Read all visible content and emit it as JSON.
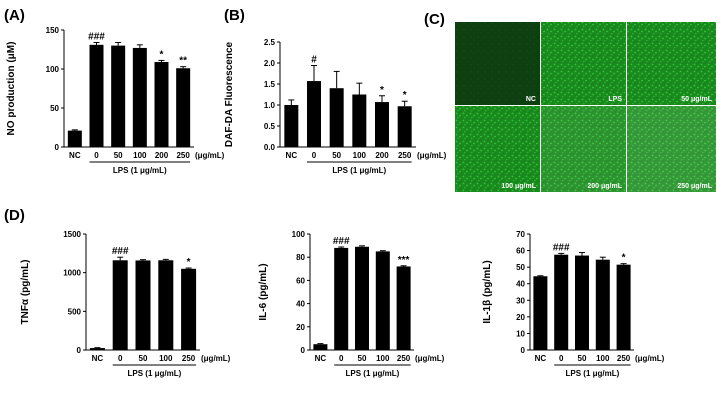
{
  "panels": [
    {
      "id": "A",
      "letter": "(A)"
    },
    {
      "id": "B",
      "letter": "(B)"
    },
    {
      "id": "C",
      "letter": "(C)"
    },
    {
      "id": "D",
      "letter": "(D)"
    }
  ],
  "chart_data": [
    {
      "panel": "A",
      "type": "bar",
      "categories": [
        "NC",
        "0",
        "50",
        "100",
        "200",
        "250"
      ],
      "values": [
        21,
        131,
        130,
        127,
        109,
        101
      ],
      "errors": [
        1,
        3,
        4,
        4,
        2,
        2
      ],
      "significance": [
        "",
        "###",
        "",
        "",
        "*",
        "**"
      ],
      "ylabel": "NO production (μM)",
      "yticks": [
        0,
        50,
        100,
        150
      ],
      "ylim": [
        0,
        150
      ],
      "unit": "(μg/mL)",
      "group_label": "LPS (1 μg/mL)",
      "color": "#000000"
    },
    {
      "panel": "B",
      "type": "bar",
      "categories": [
        "NC",
        "0",
        "50",
        "100",
        "200",
        "250"
      ],
      "values": [
        1.0,
        1.57,
        1.4,
        1.25,
        1.07,
        0.97
      ],
      "errors": [
        0.12,
        0.37,
        0.4,
        0.27,
        0.15,
        0.12
      ],
      "significance": [
        "",
        "#",
        "",
        "",
        "*",
        "*"
      ],
      "ylabel": "DAF-DA Fluorescence",
      "yticks": [
        0.0,
        0.5,
        1.0,
        1.5,
        2.0,
        2.5
      ],
      "ylim": [
        0,
        2.5
      ],
      "unit": "(μg/mL)",
      "group_label": "LPS (1 μg/mL)",
      "color": "#000000"
    },
    {
      "panel": "D1",
      "type": "bar",
      "categories": [
        "NC",
        "0",
        "50",
        "100",
        "250"
      ],
      "values": [
        25,
        1160,
        1158,
        1160,
        1050
      ],
      "errors": [
        5,
        40,
        10,
        12,
        10
      ],
      "significance": [
        "",
        "###",
        "",
        "",
        "*"
      ],
      "ylabel": "TNFα (pg/mL)",
      "yticks": [
        0,
        500,
        1000,
        1500
      ],
      "ylim": [
        0,
        1500
      ],
      "unit": "(μg/mL)",
      "group_label": "LPS (1 μg/mL)",
      "color": "#000000"
    },
    {
      "panel": "D2",
      "type": "bar",
      "categories": [
        "NC",
        "0",
        "50",
        "100",
        "250"
      ],
      "values": [
        5,
        88,
        89,
        85,
        72
      ],
      "errors": [
        0.5,
        0.8,
        0.8,
        0.6,
        0.6
      ],
      "significance": [
        "",
        "###",
        "",
        "",
        "***"
      ],
      "ylabel": "IL-6 (pg/mL)",
      "yticks": [
        0,
        20,
        40,
        60,
        80,
        100
      ],
      "ylim": [
        0,
        100
      ],
      "unit": "(μg/mL)",
      "group_label": "LPS (1 μg/mL)",
      "color": "#000000"
    },
    {
      "panel": "D3",
      "type": "bar",
      "categories": [
        "NC",
        "0",
        "50",
        "100",
        "250"
      ],
      "values": [
        44.5,
        57.5,
        57,
        54.5,
        51.5
      ],
      "errors": [
        0.3,
        0.8,
        1.8,
        1.5,
        0.6
      ],
      "significance": [
        "",
        "###",
        "",
        "",
        "*"
      ],
      "ylabel": "IL-1β (pg/mL)",
      "yticks": [
        0,
        10,
        20,
        30,
        40,
        50,
        60,
        70
      ],
      "ylim": [
        0,
        70
      ],
      "unit": "(μg/mL)",
      "group_label": "LPS (1 μg/mL)",
      "color": "#000000"
    }
  ],
  "fluorescence_images": {
    "labels": [
      "NC",
      "LPS",
      "50 μg/mL",
      "100 μg/mL",
      "200 μg/mL",
      "250 μg/mL"
    ],
    "background": "#0e4a10",
    "tint": "#1fa524",
    "nc_tint": "#0f3a0f"
  }
}
